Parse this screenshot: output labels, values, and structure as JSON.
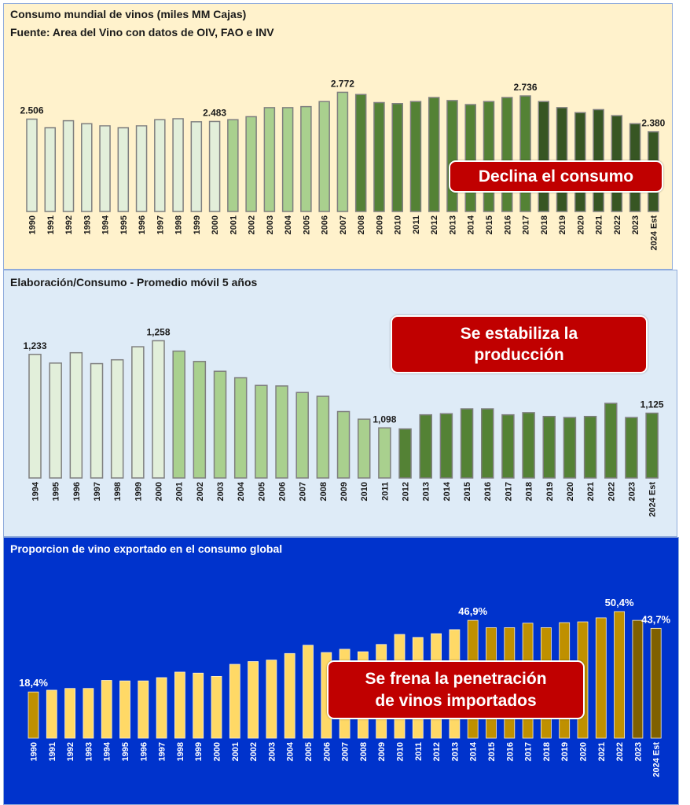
{
  "charts": {
    "consumo": {
      "title": "Consumo mundial de vinos (miles MM Cajas)",
      "subtitle": "Fuente: Area del Vino con datos de OIV, FAO e INV",
      "callout": "Declina el consumo"
    },
    "elaboracion": {
      "title": "Elaboración/Consumo - Promedio móvil 5 años",
      "callout_line1": "Se estabiliza la",
      "callout_line2": "producción"
    },
    "exportado": {
      "title": "Proporcion de vino exportado  en el consumo global",
      "callout_line1": "Se frena la penetración",
      "callout_line2": "de vinos importados"
    }
  },
  "chart_data": [
    {
      "type": "bar",
      "title": "Consumo mundial de vinos (miles MM Cajas)",
      "ylim": [
        1.59,
        2.9
      ],
      "axis_visible": false,
      "grid": false,
      "categories": [
        "1990",
        "1991",
        "1992",
        "1993",
        "1994",
        "1995",
        "1996",
        "1997",
        "1998",
        "1999",
        "2000",
        "2001",
        "2002",
        "2003",
        "2004",
        "2005",
        "2006",
        "2007",
        "2008",
        "2009",
        "2010",
        "2011",
        "2012",
        "2013",
        "2014",
        "2015",
        "2016",
        "2017",
        "2018",
        "2019",
        "2020",
        "2021",
        "2022",
        "2023",
        "2024 Est"
      ],
      "values": [
        2.506,
        2.42,
        2.49,
        2.46,
        2.44,
        2.42,
        2.44,
        2.5,
        2.51,
        2.48,
        2.483,
        2.5,
        2.53,
        2.62,
        2.62,
        2.63,
        2.68,
        2.772,
        2.75,
        2.67,
        2.66,
        2.68,
        2.72,
        2.69,
        2.65,
        2.68,
        2.72,
        2.736,
        2.68,
        2.62,
        2.57,
        2.6,
        2.54,
        2.46,
        2.38
      ],
      "data_labels": {
        "0": "2.506",
        "10": "2.483",
        "17": "2.772",
        "27": "2.736",
        "34": "2.380"
      },
      "bar_colors": [
        "#e2efda",
        "#e2efda",
        "#e2efda",
        "#e2efda",
        "#e2efda",
        "#e2efda",
        "#e2efda",
        "#e2efda",
        "#e2efda",
        "#e2efda",
        "#e2efda",
        "#a9d08e",
        "#a9d08e",
        "#a9d08e",
        "#a9d08e",
        "#a9d08e",
        "#a9d08e",
        "#a9d08e",
        "#548235",
        "#548235",
        "#548235",
        "#548235",
        "#548235",
        "#548235",
        "#548235",
        "#548235",
        "#548235",
        "#548235",
        "#375623",
        "#375623",
        "#375623",
        "#375623",
        "#375623",
        "#375623",
        "#375623"
      ],
      "bar_outline": "#7f7f7f",
      "label_color": "#1a1a1a"
    },
    {
      "type": "bar",
      "title": "Elaboración/Consumo - Promedio móvil 5 años",
      "ylim": [
        1.006,
        1.276
      ],
      "axis_visible": false,
      "grid": false,
      "categories": [
        "1994",
        "1995",
        "1996",
        "1997",
        "1998",
        "1999",
        "2000",
        "2001",
        "2002",
        "2003",
        "2004",
        "2005",
        "2006",
        "2007",
        "2008",
        "2009",
        "2010",
        "2011",
        "2012",
        "2013",
        "2014",
        "2015",
        "2016",
        "2017",
        "2018",
        "2019",
        "2020",
        "2021",
        "2022",
        "2023",
        "2024 Est"
      ],
      "values": [
        1.233,
        1.217,
        1.236,
        1.216,
        1.223,
        1.247,
        1.258,
        1.239,
        1.22,
        1.202,
        1.19,
        1.176,
        1.175,
        1.163,
        1.156,
        1.128,
        1.114,
        1.098,
        1.096,
        1.122,
        1.124,
        1.133,
        1.133,
        1.122,
        1.126,
        1.119,
        1.117,
        1.119,
        1.143,
        1.117,
        1.125
      ],
      "data_labels": {
        "0": "1,233",
        "6": "1,258",
        "17": "1,098",
        "30": "1,125"
      },
      "bar_colors": [
        "#e2efda",
        "#e2efda",
        "#e2efda",
        "#e2efda",
        "#e2efda",
        "#e2efda",
        "#e2efda",
        "#a9d08e",
        "#a9d08e",
        "#a9d08e",
        "#a9d08e",
        "#a9d08e",
        "#a9d08e",
        "#a9d08e",
        "#a9d08e",
        "#a9d08e",
        "#a9d08e",
        "#a9d08e",
        "#548235",
        "#548235",
        "#548235",
        "#548235",
        "#548235",
        "#548235",
        "#548235",
        "#548235",
        "#548235",
        "#548235",
        "#548235",
        "#548235",
        "#548235"
      ],
      "bar_outline": "#7f7f7f",
      "label_color": "#1a1a1a"
    },
    {
      "type": "bar",
      "title": "Proporcion de vino exportado  en el consumo global",
      "ylim": [
        0,
        55.7
      ],
      "axis_visible": false,
      "grid": false,
      "categories": [
        "1990",
        "1991",
        "1992",
        "1993",
        "1994",
        "1995",
        "1996",
        "1997",
        "1998",
        "1999",
        "2000",
        "2001",
        "2002",
        "2003",
        "2004",
        "2005",
        "2006",
        "2007",
        "2008",
        "2009",
        "2010",
        "2011",
        "2012",
        "2013",
        "2014",
        "2015",
        "2016",
        "2017",
        "2018",
        "2019",
        "2020",
        "2021",
        "2022",
        "2023",
        "2024 Est"
      ],
      "values": [
        18.4,
        19.1,
        19.8,
        19.8,
        23.0,
        22.8,
        22.8,
        24.1,
        26.3,
        25.9,
        24.6,
        29.4,
        30.5,
        31.1,
        33.7,
        37.0,
        34.1,
        35.4,
        34.4,
        37.3,
        41.3,
        40.1,
        41.6,
        43.2,
        46.9,
        44.0,
        44.0,
        45.8,
        44.0,
        46.0,
        46.3,
        47.9,
        50.4,
        46.9,
        43.7
      ],
      "data_labels": {
        "0": "18,4%",
        "24": "46,9%",
        "32": "50,4%",
        "34": "43,7%"
      },
      "bar_colors": [
        "#bf9000",
        "#ffd966",
        "#ffd966",
        "#ffd966",
        "#ffd966",
        "#ffd966",
        "#ffd966",
        "#ffd966",
        "#ffd966",
        "#ffd966",
        "#ffd966",
        "#ffd966",
        "#ffd966",
        "#ffd966",
        "#ffd966",
        "#ffd966",
        "#ffd966",
        "#ffd966",
        "#ffd966",
        "#ffd966",
        "#ffd966",
        "#ffd966",
        "#ffd966",
        "#ffd966",
        "#bf9000",
        "#bf9000",
        "#bf9000",
        "#bf9000",
        "#bf9000",
        "#bf9000",
        "#bf9000",
        "#bf9000",
        "#bf9000",
        "#7f6000",
        "#7f6000"
      ],
      "bar_outline": "#fff2cc",
      "label_color": "#ffffff"
    }
  ],
  "colors": {
    "callout": "#c00000",
    "panel1_bg": "#fff2cc",
    "panel2_bg": "#deebf7",
    "panel3_bg": "#0033cc"
  }
}
